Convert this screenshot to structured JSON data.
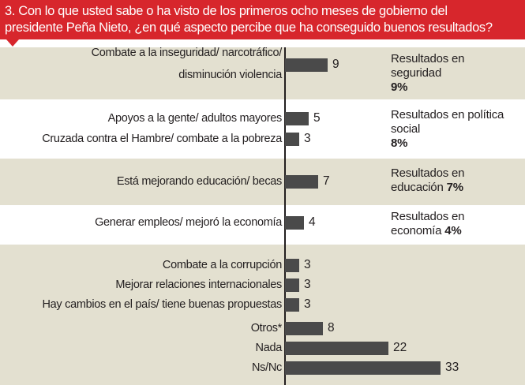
{
  "header": {
    "line1": "3. Con lo que usted sabe o ha visto de los primeros ocho meses de gobierno  del",
    "line2": "presidente Peña Nieto, ¿en qué aspecto percibe que ha conseguido  buenos resultados?"
  },
  "groups": [
    {
      "lines": [
        "Resultados  en",
        "seguridad"
      ],
      "pct": "9%"
    },
    {
      "lines": [
        "Resultados en política",
        "social"
      ],
      "pct": "8%"
    },
    {
      "lines": [
        "Resultados en",
        "educación"
      ],
      "pct": "7%"
    },
    {
      "lines": [
        "Resultados en",
        "economía"
      ],
      "pct": "4%"
    }
  ],
  "chart_data": {
    "type": "bar",
    "orientation": "horizontal",
    "categories": [
      "Combate a la inseguridad/ narcotráfico/ disminución violencia",
      "Apoyos a la gente/ adultos mayores",
      "Cruzada contra el Hambre/ combate a la pobreza",
      "Está mejorando educación/ becas",
      "Generar empleos/ mejoró la economía",
      "Combate a la corrupción",
      "Mejorar relaciones internacionales",
      "Hay cambios en el país/ tiene buenas propuestas",
      "Otros*",
      "Nada",
      "Ns/Nc"
    ],
    "label_lines": [
      [
        "Combate a la inseguridad/ narcotráfico/",
        "disminución violencia"
      ],
      [
        "Apoyos a la gente/ adultos mayores"
      ],
      [
        "Cruzada contra el Hambre/ combate a la pobreza"
      ],
      [
        "Está mejorando educación/ becas"
      ],
      [
        "Generar empleos/ mejoró la economía"
      ],
      [
        "Combate a la corrupción"
      ],
      [
        "Mejorar relaciones internacionales"
      ],
      [
        "Hay cambios en el país/ tiene buenas propuestas"
      ],
      [
        "Otros*"
      ],
      [
        "Nada"
      ],
      [
        "Ns/Nc"
      ]
    ],
    "values": [
      9,
      5,
      3,
      7,
      4,
      3,
      3,
      3,
      8,
      22,
      33
    ],
    "value_labels": [
      "9",
      "5",
      "3",
      "7",
      "4",
      "3",
      "3",
      "3",
      "8",
      "22",
      "33"
    ],
    "xlim": [
      0,
      33
    ],
    "grid": false,
    "bar_color": "#4a4a4a",
    "band_colors": {
      "beige": "#e3e0d0",
      "white": "#ffffff"
    },
    "accent": "#d7262c"
  }
}
